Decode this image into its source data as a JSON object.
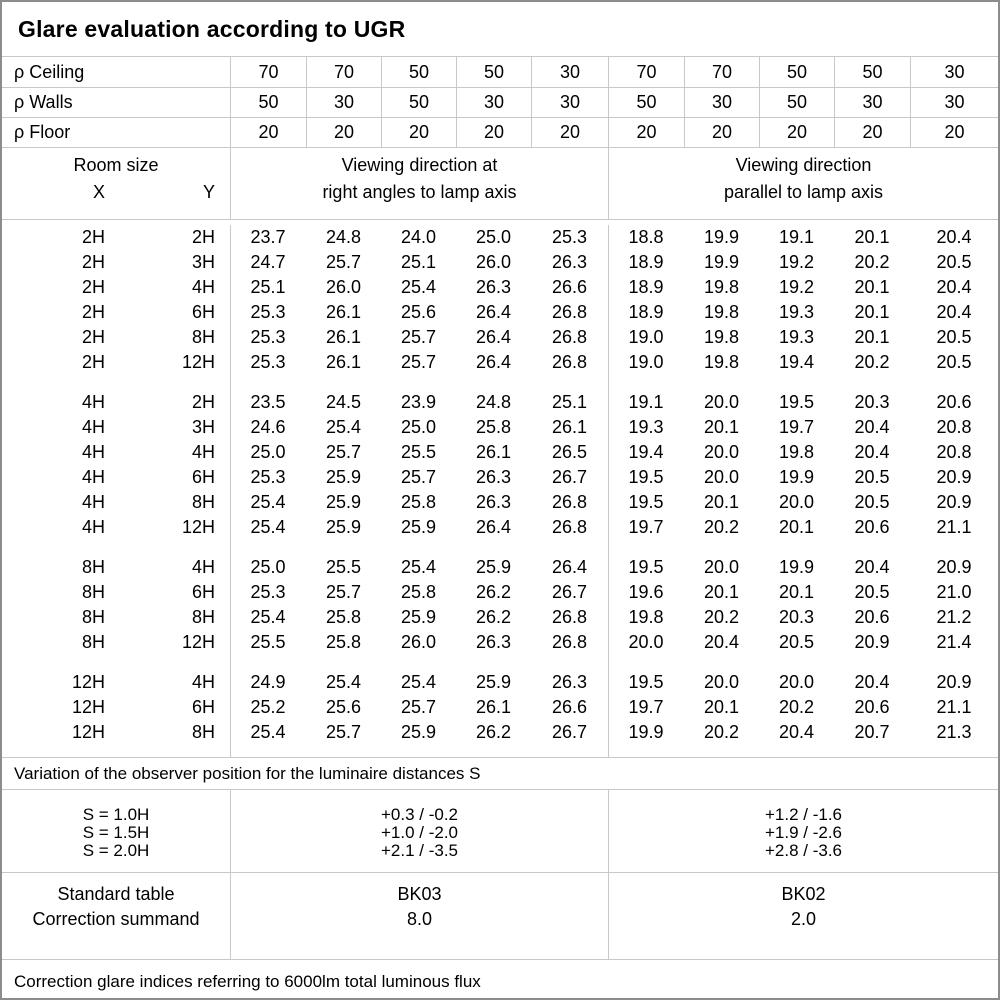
{
  "title": "Glare evaluation according to UGR",
  "reflectance": {
    "rows": [
      {
        "label": "ρ Ceiling",
        "values": [
          "70",
          "70",
          "50",
          "50",
          "30",
          "70",
          "70",
          "50",
          "50",
          "30"
        ]
      },
      {
        "label": "ρ Walls",
        "values": [
          "50",
          "30",
          "50",
          "30",
          "30",
          "50",
          "30",
          "50",
          "30",
          "30"
        ]
      },
      {
        "label": "ρ Floor",
        "values": [
          "20",
          "20",
          "20",
          "20",
          "20",
          "20",
          "20",
          "20",
          "20",
          "20"
        ]
      }
    ]
  },
  "header": {
    "room_size": "Room size",
    "x": "X",
    "y": "Y",
    "right_angle_line1": "Viewing direction at",
    "right_angle_line2": "right angles to lamp axis",
    "parallel_line1": "Viewing direction",
    "parallel_line2": "parallel to lamp axis"
  },
  "ugr_table": {
    "blocks": [
      {
        "rows": [
          {
            "x": "2H",
            "y": "2H",
            "right_angle": [
              "23.7",
              "24.8",
              "24.0",
              "25.0",
              "25.3"
            ],
            "parallel": [
              "18.8",
              "19.9",
              "19.1",
              "20.1",
              "20.4"
            ]
          },
          {
            "x": "2H",
            "y": "3H",
            "right_angle": [
              "24.7",
              "25.7",
              "25.1",
              "26.0",
              "26.3"
            ],
            "parallel": [
              "18.9",
              "19.9",
              "19.2",
              "20.2",
              "20.5"
            ]
          },
          {
            "x": "2H",
            "y": "4H",
            "right_angle": [
              "25.1",
              "26.0",
              "25.4",
              "26.3",
              "26.6"
            ],
            "parallel": [
              "18.9",
              "19.8",
              "19.2",
              "20.1",
              "20.4"
            ]
          },
          {
            "x": "2H",
            "y": "6H",
            "right_angle": [
              "25.3",
              "26.1",
              "25.6",
              "26.4",
              "26.8"
            ],
            "parallel": [
              "18.9",
              "19.8",
              "19.3",
              "20.1",
              "20.4"
            ]
          },
          {
            "x": "2H",
            "y": "8H",
            "right_angle": [
              "25.3",
              "26.1",
              "25.7",
              "26.4",
              "26.8"
            ],
            "parallel": [
              "19.0",
              "19.8",
              "19.3",
              "20.1",
              "20.5"
            ]
          },
          {
            "x": "2H",
            "y": "12H",
            "right_angle": [
              "25.3",
              "26.1",
              "25.7",
              "26.4",
              "26.8"
            ],
            "parallel": [
              "19.0",
              "19.8",
              "19.4",
              "20.2",
              "20.5"
            ]
          }
        ]
      },
      {
        "rows": [
          {
            "x": "4H",
            "y": "2H",
            "right_angle": [
              "23.5",
              "24.5",
              "23.9",
              "24.8",
              "25.1"
            ],
            "parallel": [
              "19.1",
              "20.0",
              "19.5",
              "20.3",
              "20.6"
            ]
          },
          {
            "x": "4H",
            "y": "3H",
            "right_angle": [
              "24.6",
              "25.4",
              "25.0",
              "25.8",
              "26.1"
            ],
            "parallel": [
              "19.3",
              "20.1",
              "19.7",
              "20.4",
              "20.8"
            ]
          },
          {
            "x": "4H",
            "y": "4H",
            "right_angle": [
              "25.0",
              "25.7",
              "25.5",
              "26.1",
              "26.5"
            ],
            "parallel": [
              "19.4",
              "20.0",
              "19.8",
              "20.4",
              "20.8"
            ]
          },
          {
            "x": "4H",
            "y": "6H",
            "right_angle": [
              "25.3",
              "25.9",
              "25.7",
              "26.3",
              "26.7"
            ],
            "parallel": [
              "19.5",
              "20.0",
              "19.9",
              "20.5",
              "20.9"
            ]
          },
          {
            "x": "4H",
            "y": "8H",
            "right_angle": [
              "25.4",
              "25.9",
              "25.8",
              "26.3",
              "26.8"
            ],
            "parallel": [
              "19.5",
              "20.1",
              "20.0",
              "20.5",
              "20.9"
            ]
          },
          {
            "x": "4H",
            "y": "12H",
            "right_angle": [
              "25.4",
              "25.9",
              "25.9",
              "26.4",
              "26.8"
            ],
            "parallel": [
              "19.7",
              "20.2",
              "20.1",
              "20.6",
              "21.1"
            ]
          }
        ]
      },
      {
        "rows": [
          {
            "x": "8H",
            "y": "4H",
            "right_angle": [
              "25.0",
              "25.5",
              "25.4",
              "25.9",
              "26.4"
            ],
            "parallel": [
              "19.5",
              "20.0",
              "19.9",
              "20.4",
              "20.9"
            ]
          },
          {
            "x": "8H",
            "y": "6H",
            "right_angle": [
              "25.3",
              "25.7",
              "25.8",
              "26.2",
              "26.7"
            ],
            "parallel": [
              "19.6",
              "20.1",
              "20.1",
              "20.5",
              "21.0"
            ]
          },
          {
            "x": "8H",
            "y": "8H",
            "right_angle": [
              "25.4",
              "25.8",
              "25.9",
              "26.2",
              "26.8"
            ],
            "parallel": [
              "19.8",
              "20.2",
              "20.3",
              "20.6",
              "21.2"
            ]
          },
          {
            "x": "8H",
            "y": "12H",
            "right_angle": [
              "25.5",
              "25.8",
              "26.0",
              "26.3",
              "26.8"
            ],
            "parallel": [
              "20.0",
              "20.4",
              "20.5",
              "20.9",
              "21.4"
            ]
          }
        ]
      },
      {
        "rows": [
          {
            "x": "12H",
            "y": "4H",
            "right_angle": [
              "24.9",
              "25.4",
              "25.4",
              "25.9",
              "26.3"
            ],
            "parallel": [
              "19.5",
              "20.0",
              "20.0",
              "20.4",
              "20.9"
            ]
          },
          {
            "x": "12H",
            "y": "6H",
            "right_angle": [
              "25.2",
              "25.6",
              "25.7",
              "26.1",
              "26.6"
            ],
            "parallel": [
              "19.7",
              "20.1",
              "20.2",
              "20.6",
              "21.1"
            ]
          },
          {
            "x": "12H",
            "y": "8H",
            "right_angle": [
              "25.4",
              "25.7",
              "25.9",
              "26.2",
              "26.7"
            ],
            "parallel": [
              "19.9",
              "20.2",
              "20.4",
              "20.7",
              "21.3"
            ]
          }
        ]
      }
    ]
  },
  "variation_note": "Variation of the observer position for the luminaire distances S",
  "s_correction": {
    "labels": [
      "S = 1.0H",
      "S = 1.5H",
      "S = 2.0H"
    ],
    "right_angle": [
      "+0.3 / -0.2",
      "+1.0 / -2.0",
      "+2.1 / -3.5"
    ],
    "parallel": [
      "+1.2 / -1.6",
      "+1.9 / -2.6",
      "+2.8 / -3.6"
    ]
  },
  "summary": {
    "standard_table_label": "Standard table",
    "standard_table_right_angle": "BK03",
    "standard_table_parallel": "BK02",
    "correction_summand_label": "Correction summand",
    "correction_summand_right_angle": "8.0",
    "correction_summand_parallel": "2.0"
  },
  "footer_note": "Correction glare indices referring to 6000lm total luminous flux"
}
